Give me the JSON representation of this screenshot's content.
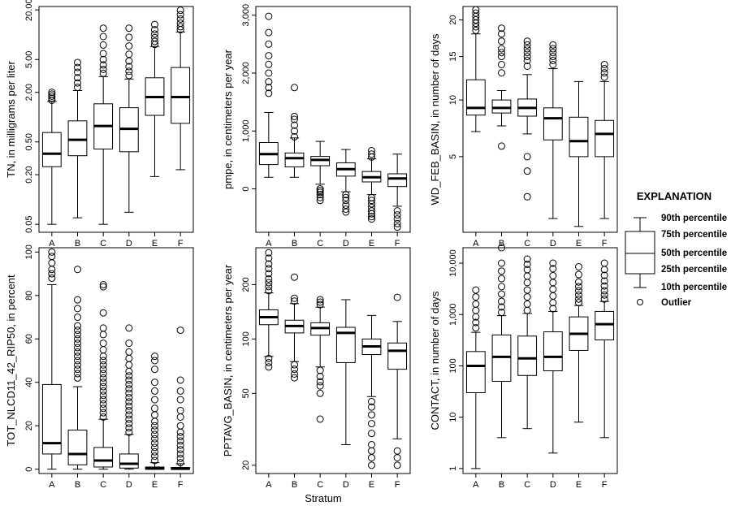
{
  "figure": {
    "x_axis_title": "Stratum",
    "categories": [
      "A",
      "B",
      "C",
      "D",
      "E",
      "F"
    ]
  },
  "explanation": {
    "title": "EXPLANATION",
    "p90": "90th percentile",
    "p75": "75th percentile",
    "p50": "50th percentile",
    "p25": "25th percentile",
    "p10": "10th percentile",
    "outlier": "Outlier"
  },
  "chart_data": [
    {
      "type": "boxplot",
      "ylabel": "TN, in milligrams per liter",
      "scale": "log",
      "ylim": [
        0.04,
        22
      ],
      "yticks": [
        0.05,
        0.2,
        0.5,
        2.0,
        5.0,
        20.0
      ],
      "ytick_labels": [
        "0.05",
        "0.20",
        "0.50",
        "2.00",
        "5.00",
        "20.00"
      ],
      "categories": [
        "A",
        "B",
        "C",
        "D",
        "E",
        "F"
      ],
      "boxes": [
        {
          "cat": "A",
          "p10": 0.05,
          "p25": 0.25,
          "median": 0.36,
          "p75": 0.65,
          "p90": 1.55,
          "outliers": [
            1.6,
            1.7,
            1.8,
            1.9,
            2.0
          ]
        },
        {
          "cat": "B",
          "p10": 0.06,
          "p25": 0.34,
          "median": 0.53,
          "p75": 0.9,
          "p90": 2.1,
          "outliers": [
            2.3,
            2.6,
            3.0,
            3.5,
            4.0,
            4.6
          ]
        },
        {
          "cat": "C",
          "p10": 0.05,
          "p25": 0.41,
          "median": 0.78,
          "p75": 1.45,
          "p90": 3.1,
          "outliers": [
            3.4,
            3.8,
            4.3,
            5.0,
            5.9,
            7.5,
            9.5,
            12.0
          ]
        },
        {
          "cat": "D",
          "p10": 0.07,
          "p25": 0.38,
          "median": 0.72,
          "p75": 1.3,
          "p90": 2.9,
          "outliers": [
            3.2,
            3.6,
            4.1,
            4.8,
            5.8,
            7.3,
            9.3,
            12.0
          ]
        },
        {
          "cat": "E",
          "p10": 0.19,
          "p25": 1.05,
          "median": 1.75,
          "p75": 3.0,
          "p90": 7.2,
          "outliers": [
            7.6,
            8.3,
            9.2,
            10.2,
            11.5,
            13.3
          ]
        },
        {
          "cat": "F",
          "p10": 0.23,
          "p25": 0.84,
          "median": 1.75,
          "p75": 4.0,
          "p90": 10.8,
          "outliers": [
            11.5,
            12.5,
            13.8,
            15.5,
            17.5,
            19.8
          ]
        }
      ]
    },
    {
      "type": "boxplot",
      "ylabel": "pmpe, in centimeters per year",
      "scale": "linear",
      "ylim": [
        -750,
        3150
      ],
      "yticks": [
        0,
        1000,
        2000,
        3000
      ],
      "ytick_labels": [
        "0",
        "1,000",
        "2,000",
        "3,000"
      ],
      "categories": [
        "A",
        "B",
        "C",
        "D",
        "E",
        "F"
      ],
      "boxes": [
        {
          "cat": "A",
          "p10": 200,
          "p25": 420,
          "median": 600,
          "p75": 800,
          "p90": 1320,
          "outliers": [
            1650,
            1750,
            1850,
            2000,
            2150,
            2300,
            2500,
            2700,
            2980
          ]
        },
        {
          "cat": "B",
          "p10": 200,
          "p25": 380,
          "median": 530,
          "p75": 620,
          "p90": 880,
          "outliers": [
            900,
            1000,
            1100,
            1200,
            1250,
            1750
          ]
        },
        {
          "cat": "C",
          "p10": 80,
          "p25": 400,
          "median": 500,
          "p75": 560,
          "p90": 820,
          "outliers": [
            0,
            -30,
            -60,
            -100,
            -150,
            -200
          ]
        },
        {
          "cat": "D",
          "p10": -50,
          "p25": 220,
          "median": 340,
          "p75": 450,
          "p90": 680,
          "outliers": [
            -100,
            -150,
            -200,
            -280,
            -350,
            -400
          ]
        },
        {
          "cat": "E",
          "p10": -100,
          "p25": 120,
          "median": 200,
          "p75": 300,
          "p90": 520,
          "outliers": [
            550,
            600,
            660,
            -150,
            -200,
            -260,
            -320,
            -380,
            -430,
            -480,
            -520
          ]
        },
        {
          "cat": "F",
          "p10": -300,
          "p25": 40,
          "median": 180,
          "p75": 260,
          "p90": 600,
          "outliers": [
            -380,
            -450,
            -520,
            -600,
            -660
          ]
        }
      ]
    },
    {
      "type": "boxplot",
      "ylabel": "WD_FEB_BASIN, in number of days",
      "scale": "sqrt",
      "ylim": [
        1,
        22
      ],
      "yticks": [
        5,
        10,
        15,
        20
      ],
      "ytick_labels": [
        "5",
        "10",
        "15",
        "20"
      ],
      "categories": [
        "A",
        "B",
        "C",
        "D",
        "E",
        "F"
      ],
      "boxes": [
        {
          "cat": "A",
          "p10": 7.0,
          "p25": 8.5,
          "median": 9.2,
          "p75": 12.2,
          "p90": 18.0,
          "outliers": [
            18.5,
            19.0,
            19.5,
            20.0,
            20.5,
            21.0,
            21.5
          ]
        },
        {
          "cat": "B",
          "p10": 7.5,
          "p25": 8.7,
          "median": 9.2,
          "p75": 10.0,
          "p90": 11.0,
          "outliers": [
            13.0,
            14.0,
            15.0,
            15.5,
            16.0,
            17.0,
            18.0,
            18.8,
            5.8
          ]
        },
        {
          "cat": "C",
          "p10": 6.8,
          "p25": 8.4,
          "median": 9.2,
          "p75": 10.1,
          "p90": 12.8,
          "outliers": [
            13.8,
            14.5,
            15.0,
            15.5,
            16.0,
            16.5,
            17.0,
            5.0,
            4.0,
            2.5
          ]
        },
        {
          "cat": "D",
          "p10": 1.5,
          "p25": 6.3,
          "median": 8.2,
          "p75": 9.2,
          "p90": 13.5,
          "outliers": [
            14.0,
            14.5,
            15.0,
            15.5,
            16.0,
            16.5
          ]
        },
        {
          "cat": "E",
          "p10": 1.2,
          "p25": 5.0,
          "median": 6.2,
          "p75": 8.3,
          "p90": 12.0,
          "outliers": []
        },
        {
          "cat": "F",
          "p10": 1.5,
          "p25": 5.0,
          "median": 6.8,
          "p75": 8.0,
          "p90": 12.0,
          "outliers": [
            12.5,
            13.0,
            13.5,
            14.0
          ]
        }
      ]
    },
    {
      "type": "boxplot",
      "ylabel": "TOT_NLCD11_42_RIP50, in percent",
      "scale": "linear",
      "ylim": [
        -2,
        102
      ],
      "yticks": [
        0,
        20,
        40,
        60,
        80,
        100
      ],
      "ytick_labels": [
        "0",
        "20",
        "40",
        "60",
        "80",
        "100"
      ],
      "categories": [
        "A",
        "B",
        "C",
        "D",
        "E",
        "F"
      ],
      "boxes": [
        {
          "cat": "A",
          "p10": 0,
          "p25": 7,
          "median": 12,
          "p75": 39,
          "p90": 85,
          "outliers": [
            88,
            90,
            92,
            95,
            98,
            100
          ]
        },
        {
          "cat": "B",
          "p10": 0,
          "p25": 2,
          "median": 7,
          "p75": 18,
          "p90": 38,
          "outliers": [
            42,
            44,
            46,
            48,
            50,
            52,
            54,
            56,
            58,
            60,
            62,
            64,
            66,
            70,
            74,
            78,
            92
          ]
        },
        {
          "cat": "C",
          "p10": 0,
          "p25": 1,
          "median": 4,
          "p75": 10,
          "p90": 23,
          "outliers": [
            24,
            26,
            28,
            30,
            32,
            34,
            36,
            38,
            40,
            42,
            44,
            46,
            48,
            50,
            52,
            55,
            58,
            62,
            65,
            72,
            84,
            85
          ]
        },
        {
          "cat": "D",
          "p10": 0,
          "p25": 0.5,
          "median": 2.5,
          "p75": 7,
          "p90": 16,
          "outliers": [
            17,
            19,
            21,
            23,
            25,
            27,
            29,
            31,
            33,
            35,
            37,
            39,
            41,
            43,
            45,
            48,
            51,
            54,
            58,
            65
          ]
        },
        {
          "cat": "E",
          "p10": 0,
          "p25": 0,
          "median": 0.3,
          "p75": 1,
          "p90": 3,
          "outliers": [
            4,
            6,
            8,
            10,
            12,
            14,
            16,
            18,
            20,
            22,
            25,
            28,
            32,
            36,
            40,
            46,
            50,
            52
          ]
        },
        {
          "cat": "F",
          "p10": 0,
          "p25": 0,
          "median": 0.2,
          "p75": 0.8,
          "p90": 2.5,
          "outliers": [
            3,
            5,
            7,
            9,
            11,
            13,
            15,
            17,
            20,
            24,
            27,
            32,
            36,
            41,
            64
          ]
        }
      ]
    },
    {
      "type": "boxplot",
      "ylabel": "PPTAVG_BASIN, in centimeters per year",
      "scale": "log",
      "ylim": [
        18,
        320
      ],
      "yticks": [
        20,
        50,
        100,
        200
      ],
      "ytick_labels": [
        "20",
        "50",
        "100",
        "200"
      ],
      "categories": [
        "A",
        "B",
        "C",
        "D",
        "E",
        "F"
      ],
      "boxes": [
        {
          "cat": "A",
          "p10": 80,
          "p25": 120,
          "median": 132,
          "p75": 145,
          "p90": 180,
          "outliers": [
            185,
            195,
            205,
            215,
            230,
            245,
            260,
            280,
            300,
            78,
            74,
            70
          ]
        },
        {
          "cat": "B",
          "p10": 75,
          "p25": 108,
          "median": 118,
          "p75": 127,
          "p90": 157,
          "outliers": [
            162,
            168,
            220,
            72,
            68,
            64,
            61
          ]
        },
        {
          "cat": "C",
          "p10": 70,
          "p25": 105,
          "median": 115,
          "p75": 123,
          "p90": 150,
          "outliers": [
            155,
            160,
            165,
            67,
            62,
            58,
            55,
            50,
            36
          ]
        },
        {
          "cat": "D",
          "p10": 26,
          "p25": 74,
          "median": 108,
          "p75": 116,
          "p90": 165,
          "outliers": []
        },
        {
          "cat": "E",
          "p10": 48,
          "p25": 82,
          "median": 91,
          "p75": 100,
          "p90": 135,
          "outliers": [
            45,
            42,
            38,
            34,
            30,
            26,
            24,
            22,
            20
          ]
        },
        {
          "cat": "F",
          "p10": 28,
          "p25": 68,
          "median": 86,
          "p75": 95,
          "p90": 125,
          "outliers": [
            170,
            24,
            22,
            20
          ]
        }
      ]
    },
    {
      "type": "boxplot",
      "ylabel": "CONTACT, in number of days",
      "scale": "log",
      "ylim": [
        0.8,
        20000
      ],
      "yticks": [
        1,
        10,
        100,
        1000,
        10000
      ],
      "ytick_labels": [
        "1",
        "10",
        "100",
        "1,000",
        "10,000"
      ],
      "categories": [
        "A",
        "B",
        "C",
        "D",
        "E",
        "F"
      ],
      "boxes": [
        {
          "cat": "A",
          "p10": 1,
          "p25": 30,
          "median": 100,
          "p75": 190,
          "p90": 450,
          "outliers": [
            550,
            700,
            900,
            1200,
            1600,
            2200,
            3000
          ]
        },
        {
          "cat": "B",
          "p10": 4,
          "p25": 50,
          "median": 150,
          "p75": 400,
          "p90": 950,
          "outliers": [
            1100,
            1400,
            1800,
            2500,
            3500,
            5000,
            7000,
            10000,
            20000
          ]
        },
        {
          "cat": "C",
          "p10": 6,
          "p25": 65,
          "median": 140,
          "p75": 380,
          "p90": 1050,
          "outliers": [
            1200,
            1600,
            2200,
            3000,
            4200,
            5600,
            7500,
            9500,
            12000
          ]
        },
        {
          "cat": "D",
          "p10": 2,
          "p25": 80,
          "median": 150,
          "p75": 460,
          "p90": 1150,
          "outliers": [
            1300,
            1700,
            2300,
            3100,
            4200,
            5700,
            7800,
            10000
          ]
        },
        {
          "cat": "E",
          "p10": 8,
          "p25": 200,
          "median": 420,
          "p75": 900,
          "p90": 1500,
          "outliers": [
            1700,
            2000,
            2400,
            2900,
            3500,
            4300,
            6000,
            8500
          ]
        },
        {
          "cat": "F",
          "p10": 4,
          "p25": 320,
          "median": 650,
          "p75": 1150,
          "p90": 1800,
          "outliers": [
            2000,
            2400,
            2900,
            3600,
            4500,
            5800,
            7500,
            10000
          ]
        }
      ]
    }
  ]
}
